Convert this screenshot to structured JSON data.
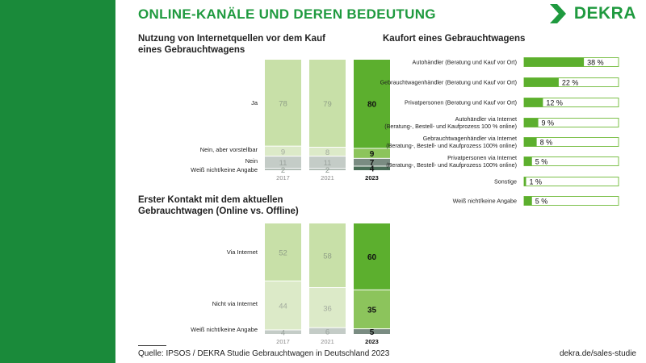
{
  "page": {
    "title": "ONLINE-KANÄLE UND DEREN BEDEUTUNG",
    "logo": "DEKRA",
    "source": "Quelle: IPSOS / DEKRA Studie Gebrauchtwagen in Deutschland 2023",
    "site": "dekra.de/sales-studie",
    "colors": {
      "background_green": "#1a8a3a",
      "accent_green": "#1f9a3f"
    }
  },
  "chart_data": [
    {
      "type": "bar",
      "stacked": true,
      "title": "Nutzung von Internetquellen vor dem Kauf eines Gebrauchtwagens",
      "title_lines": [
        "Nutzung von Internetquellen vor dem Kauf",
        "eines Gebrauchtwagens"
      ],
      "categories": [
        "2017",
        "2021",
        "2023"
      ],
      "highlight_category": "2023",
      "series": [
        {
          "name": "Ja",
          "values": [
            78,
            79,
            80
          ]
        },
        {
          "name": "Nein, aber vorstellbar",
          "values": [
            9,
            8,
            9
          ]
        },
        {
          "name": "Nein",
          "values": [
            11,
            11,
            7
          ]
        },
        {
          "name": "Weiß nicht/keine Angabe",
          "values": [
            2,
            2,
            4
          ]
        }
      ],
      "ylim": [
        0,
        100
      ]
    },
    {
      "type": "bar",
      "stacked": true,
      "title": "Erster Kontakt mit dem aktuellen Gebrauchtwagen (Online vs. Offline)",
      "title_lines": [
        "Erster Kontakt mit dem aktuellen",
        "Gebrauchtwagen (Online vs. Offline)"
      ],
      "categories": [
        "2017",
        "2021",
        "2023"
      ],
      "highlight_category": "2023",
      "series": [
        {
          "name": "Via Internet",
          "values": [
            52,
            58,
            60
          ]
        },
        {
          "name": "Nicht via Internet",
          "values": [
            44,
            36,
            35
          ]
        },
        {
          "name": "Weiß nicht/keine Angabe",
          "values": [
            4,
            6,
            5
          ]
        }
      ],
      "ylim": [
        0,
        100
      ]
    },
    {
      "type": "bar",
      "orientation": "horizontal",
      "title": "Kaufort eines Gebrauchtwagens",
      "categories": [
        [
          "Autohändler (Beratung und Kauf vor Ort)"
        ],
        [
          "Gebrauchtwagenhändler (Beratung und Kauf vor Ort)"
        ],
        [
          "Privatpersonen (Beratung und Kauf vor Ort)"
        ],
        [
          "Autohändler via Internet",
          "(Beratung-, Bestell- und Kaufprozess 100 % online)"
        ],
        [
          "Gebrauchtwagenhändler via Internet",
          "(Beratung-, Bestell- und Kaufprozess 100% online)"
        ],
        [
          "Privatpersonen via Internet",
          "(Beratung-, Bestell-  und Kaufprozess 100% online)"
        ],
        [
          "Sonstige"
        ],
        [
          "Weiß nicht/keine Angabe"
        ]
      ],
      "values": [
        38,
        22,
        12,
        9,
        8,
        5,
        1,
        5
      ],
      "value_labels": [
        "38 %",
        "22 %",
        "12 %",
        "9 %",
        "8 %",
        "5 %",
        "1 %",
        "5 %"
      ],
      "xlim": [
        0,
        100
      ]
    }
  ]
}
